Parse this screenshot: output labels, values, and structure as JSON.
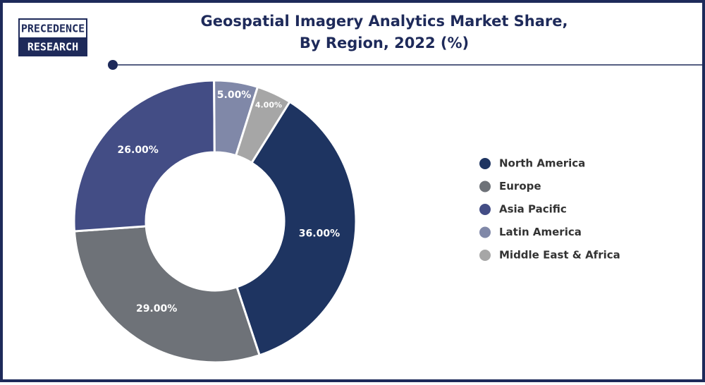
{
  "logo": {
    "line1": "PRECEDENCE",
    "line2": "RESEARCH"
  },
  "chart_data": {
    "type": "donut",
    "title": [
      "Geospatial Imagery Analytics Market Share,",
      "By Region, 2022 (%)"
    ],
    "categories": [
      "North America",
      "Europe",
      "Asia Pacific",
      "Latin America",
      "Middle East & Africa"
    ],
    "values": [
      36,
      29,
      26,
      5,
      4
    ],
    "value_labels": [
      "36.00%",
      "29.00%",
      "26.00%",
      "5.00%",
      "4.00%"
    ],
    "colors": [
      "#1e3461",
      "#6e7278",
      "#434d85",
      "#8088a8",
      "#a6a6a6"
    ],
    "legend": "right"
  }
}
